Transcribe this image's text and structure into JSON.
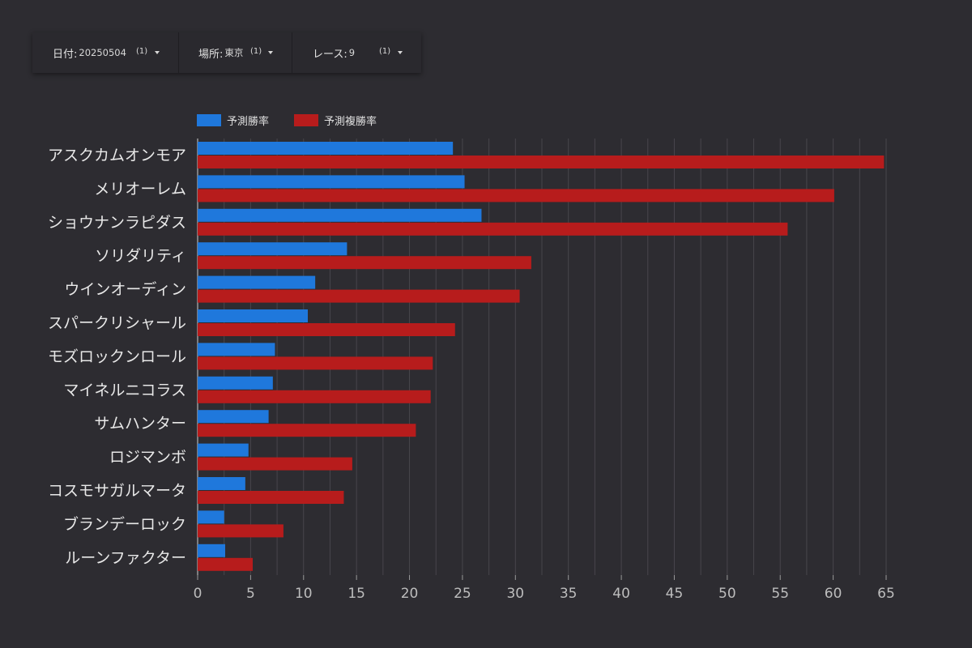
{
  "filters": {
    "date": {
      "label": "日付:",
      "value": "20250504",
      "count": "(1)"
    },
    "place": {
      "label": "場所:",
      "value": "東京",
      "count": "(1)"
    },
    "race": {
      "label": "レース:",
      "value": "9",
      "count": "(1)"
    }
  },
  "colors": {
    "win": "#1f78dc",
    "place": "#b71c1c",
    "background": "#2d2c31"
  },
  "chart_data": {
    "type": "bar",
    "orientation": "horizontal",
    "categories": [
      "アスクカムオンモア",
      "メリオーレム",
      "ショウナンラピダス",
      "ソリダリティ",
      "ウインオーディン",
      "スパークリシャール",
      "モズロックンロール",
      "マイネルニコラス",
      "サムハンター",
      "ロジマンボ",
      "コスモサガルマータ",
      "ブランデーロック",
      "ルーンファクター"
    ],
    "series": [
      {
        "name": "予測勝率",
        "color": "#1f78dc",
        "values": [
          24.1,
          25.2,
          26.8,
          14.1,
          11.1,
          10.4,
          7.3,
          7.1,
          6.7,
          4.8,
          4.5,
          2.5,
          2.6
        ]
      },
      {
        "name": "予測複勝率",
        "color": "#b71c1c",
        "values": [
          64.8,
          60.1,
          55.7,
          31.5,
          30.4,
          24.3,
          22.2,
          22.0,
          20.6,
          14.6,
          13.8,
          8.1,
          5.2
        ]
      }
    ],
    "xlim": [
      0,
      65
    ],
    "xticks": [
      0,
      5,
      10,
      15,
      20,
      25,
      30,
      35,
      40,
      45,
      50,
      55,
      60,
      65
    ],
    "grid": true,
    "legend": "top-left"
  }
}
